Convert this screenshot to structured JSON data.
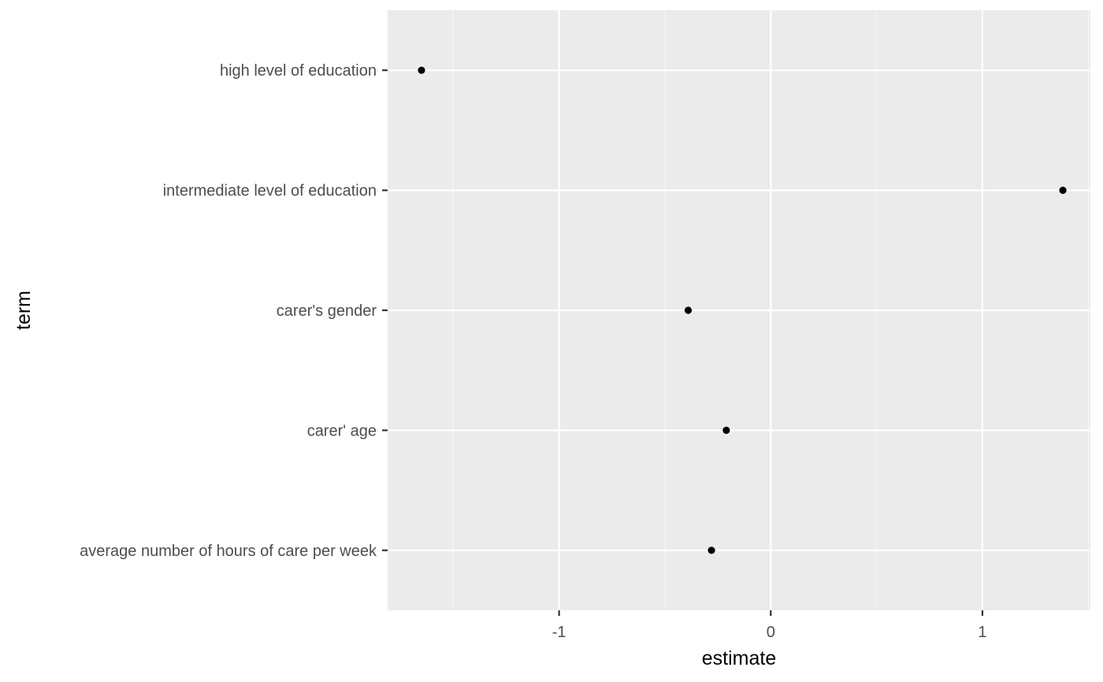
{
  "chart_data": {
    "type": "scatter",
    "xlabel": "estimate",
    "ylabel": "term",
    "xlim": [
      -1.81,
      1.51
    ],
    "x_ticks": [
      -1,
      0,
      1
    ],
    "x_tick_labels": [
      "-1",
      "0",
      "1"
    ],
    "grid": true,
    "categories": [
      "average number of hours of care per week",
      "carer' age",
      "carer's gender",
      "intermediate level of education",
      "high level of education"
    ],
    "points": [
      {
        "term": "average number of hours of care per week",
        "estimate": -0.28
      },
      {
        "term": "carer' age",
        "estimate": -0.21
      },
      {
        "term": "carer's gender",
        "estimate": -0.39
      },
      {
        "term": "intermediate level of education",
        "estimate": 1.38
      },
      {
        "term": "high level of education",
        "estimate": -1.65
      }
    ],
    "colors": {
      "panel_background": "#ebebeb",
      "grid_major": "#ffffff",
      "grid_minor": "#f5f5f5",
      "point": "#000000",
      "tick_text": "#4d4d4d",
      "title_text": "#000000"
    }
  }
}
